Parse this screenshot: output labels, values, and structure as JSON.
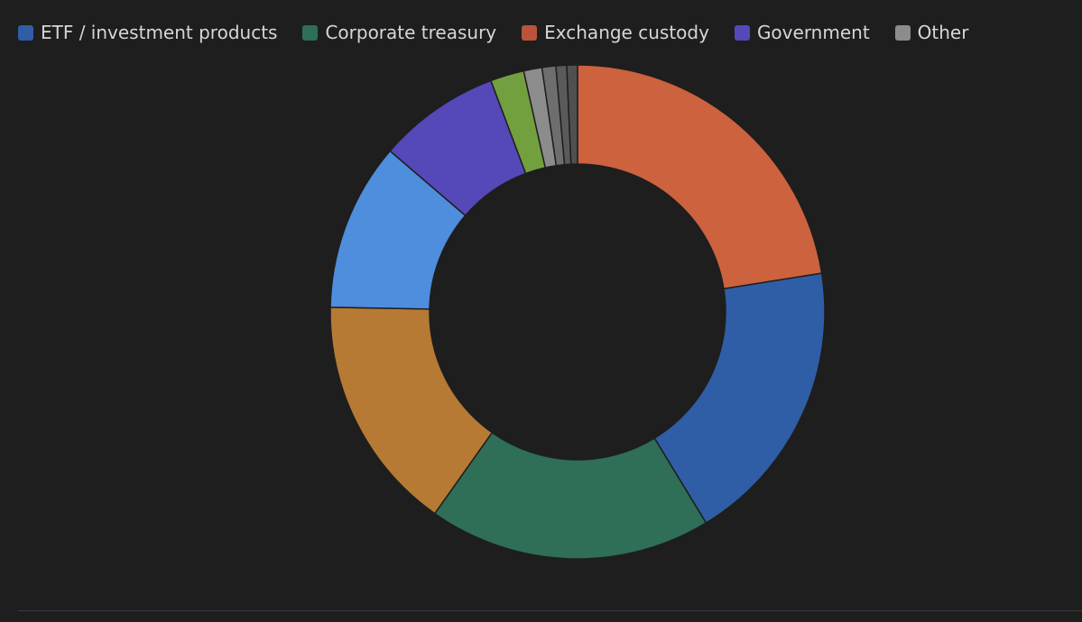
{
  "chart_data": {
    "type": "pie",
    "donut": true,
    "legend": {
      "placement": "top-left",
      "entries": [
        {
          "label": "ETF / investment products",
          "color": "#2f5ea6"
        },
        {
          "label": "Corporate treasury",
          "color": "#2f6e57"
        },
        {
          "label": "Exchange custody",
          "color": "#b9543a"
        },
        {
          "label": "Government",
          "color": "#5548b8"
        },
        {
          "label": "Other",
          "color": "#8c8c8c"
        }
      ]
    },
    "slices": [
      {
        "value": 22.5,
        "color": "#cd623f"
      },
      {
        "value": 18.8,
        "color": "#2f5ea6"
      },
      {
        "value": 18.5,
        "color": "#2f6e57"
      },
      {
        "value": 15.5,
        "color": "#b67a35"
      },
      {
        "value": 11.0,
        "color": "#4f8ddd"
      },
      {
        "value": 8.0,
        "color": "#5548b8"
      },
      {
        "value": 2.2,
        "color": "#72a03f"
      },
      {
        "value": 1.2,
        "color": "#8c8c8c"
      },
      {
        "value": 0.9,
        "color": "#6e6e6e"
      },
      {
        "value": 0.7,
        "color": "#5a5a5a"
      },
      {
        "value": 0.7,
        "color": "#505050"
      }
    ]
  }
}
